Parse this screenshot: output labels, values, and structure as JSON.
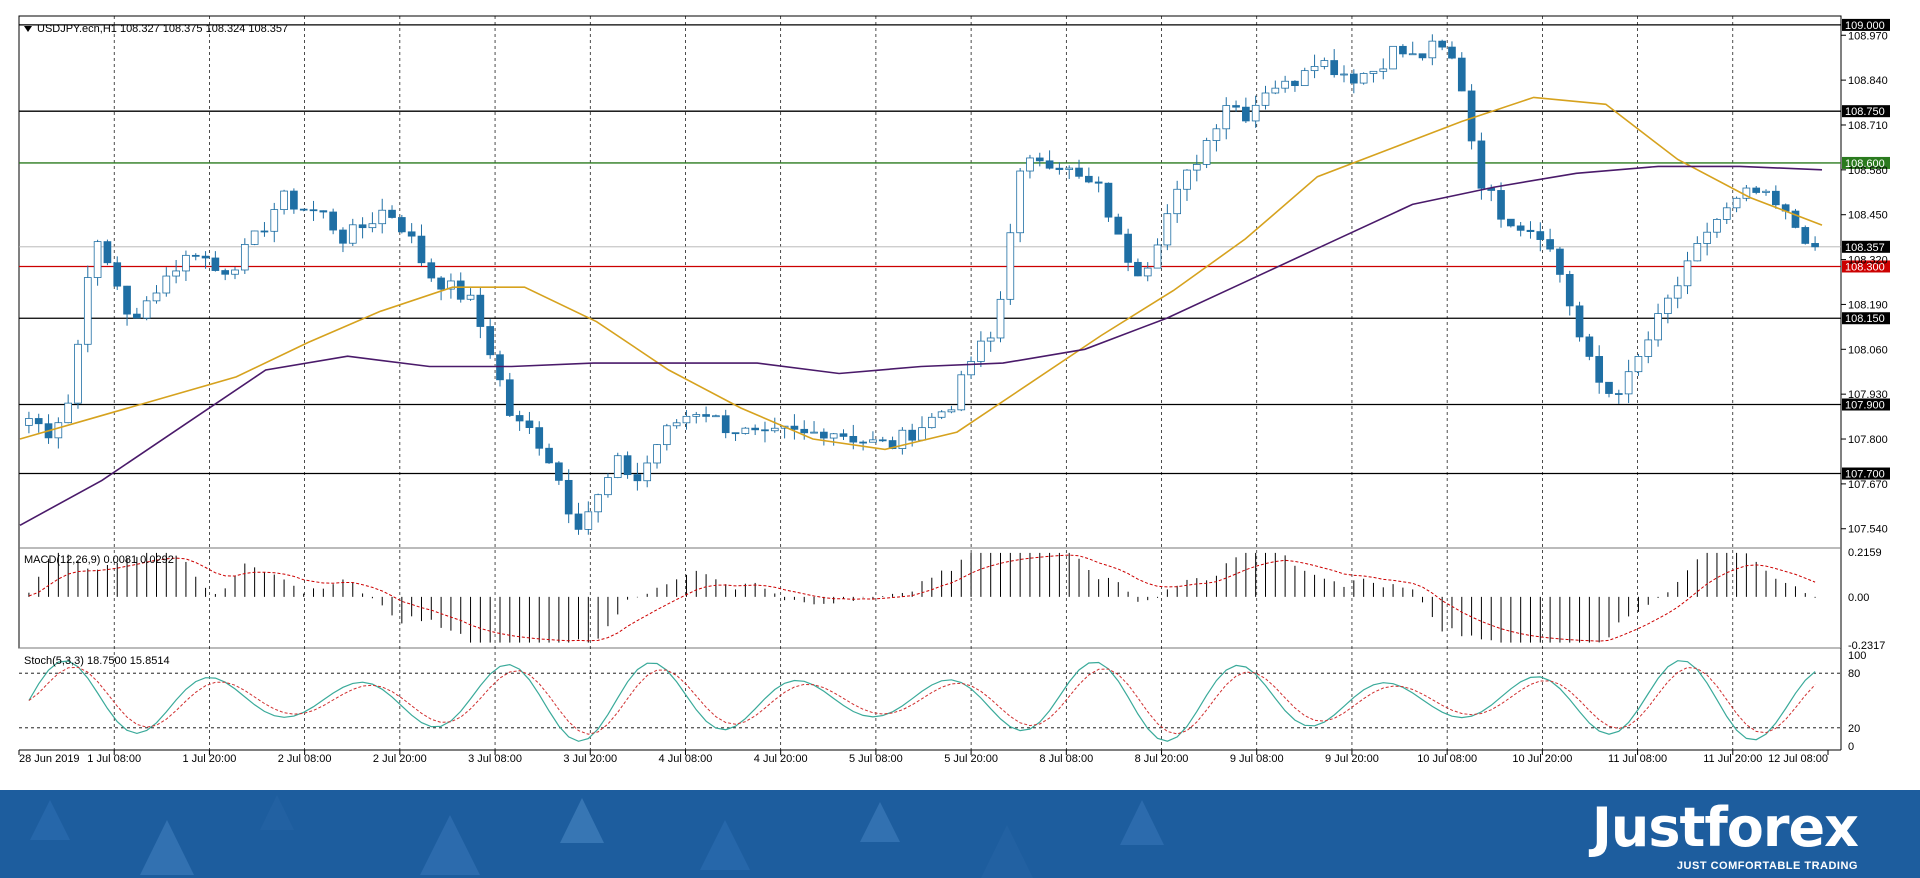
{
  "chart_header": {
    "symbol_info": "USDJPY.ecn,H1  108.327 108.375 108.324 108.357",
    "dropdown_icon": "triangle-down-icon"
  },
  "indicators": {
    "macd_label": "MACD(12,26,9) 0.0081 0.0292",
    "stoch_label": "Stoch(5,3,3) 18.7500 15.8514"
  },
  "brand": {
    "name": "Justforex",
    "tagline": "JUST COMFORTABLE TRADING"
  },
  "colors": {
    "candle_body": "#1f6fa4",
    "ma_fast": "#d6a21e",
    "ma_slow": "#4a1a6a",
    "support_line": "#cc0000",
    "resistance_line": "#2a7a1e",
    "level_line": "#000000",
    "stoch_main": "#3aaa9a",
    "stoch_signal": "#d03030",
    "footer_bg": "#1d5d9e"
  },
  "chart_data": [
    {
      "type": "candlestick",
      "title": "USDJPY.ecn,H1",
      "price_axis_ticks": [
        "108.970",
        "108.840",
        "108.710",
        "108.580",
        "108.450",
        "108.320",
        "108.190",
        "108.060",
        "107.930",
        "107.800",
        "107.670",
        "107.540"
      ],
      "ylim": [
        107.49,
        109.02
      ],
      "x_axis_ticks": [
        "28 Jun 2019",
        "1 Jul 08:00",
        "1 Jul 20:00",
        "2 Jul 08:00",
        "2 Jul 20:00",
        "3 Jul 08:00",
        "3 Jul 20:00",
        "4 Jul 08:00",
        "4 Jul 20:00",
        "5 Jul 08:00",
        "5 Jul 20:00",
        "8 Jul 08:00",
        "8 Jul 20:00",
        "9 Jul 08:00",
        "9 Jul 20:00",
        "10 Jul 08:00",
        "10 Jul 20:00",
        "11 Jul 08:00",
        "11 Jul 20:00",
        "12 Jul 08:00"
      ],
      "horizontal_levels": [
        {
          "value": 109.0,
          "label": "109.000",
          "color": "black"
        },
        {
          "value": 108.75,
          "label": "108.750",
          "color": "black"
        },
        {
          "value": 108.6,
          "label": "108.600",
          "color": "green"
        },
        {
          "value": 108.3,
          "label": "108.300",
          "color": "red"
        },
        {
          "value": 108.15,
          "label": "108.150",
          "color": "black"
        },
        {
          "value": 107.9,
          "label": "107.900",
          "color": "black"
        },
        {
          "value": 107.7,
          "label": "107.700",
          "color": "black"
        }
      ],
      "current_price": {
        "value": 108.357,
        "label": "108.357"
      },
      "ohlc": {
        "open": 108.327,
        "high": 108.375,
        "low": 108.324,
        "close": 108.357
      },
      "close_path": [
        107.86,
        107.82,
        107.92,
        108.38,
        108.28,
        108.12,
        108.24,
        108.3,
        108.35,
        108.28,
        108.32,
        108.4,
        108.5,
        108.47,
        108.45,
        108.38,
        108.42,
        108.47,
        108.4,
        108.28,
        108.24,
        108.2,
        108.05,
        107.85,
        107.82,
        107.72,
        107.55,
        107.62,
        107.73,
        107.68,
        107.8,
        107.86,
        107.89,
        107.84,
        107.82,
        107.8,
        107.82,
        107.81,
        107.83,
        107.81,
        107.79,
        107.78,
        107.82,
        107.86,
        107.91,
        108.05,
        108.1,
        108.55,
        108.62,
        108.6,
        108.55,
        108.52,
        108.35,
        108.28,
        108.43,
        108.55,
        108.66,
        108.78,
        108.74,
        108.83,
        108.82,
        108.91,
        108.88,
        108.85,
        108.87,
        108.93,
        108.9,
        108.94,
        108.88,
        108.56,
        108.46,
        108.42,
        108.4,
        108.26,
        108.05,
        107.93,
        107.96,
        108.08,
        108.2,
        108.3,
        108.42,
        108.47,
        108.52,
        108.48,
        108.42,
        108.36
      ],
      "ma_fast_path": [
        107.8,
        107.86,
        107.92,
        107.98,
        108.08,
        108.17,
        108.24,
        108.24,
        108.14,
        108.0,
        107.89,
        107.8,
        107.77,
        107.82,
        107.96,
        108.1,
        108.23,
        108.38,
        108.56,
        108.64,
        108.72,
        108.79,
        108.77,
        108.61,
        108.5,
        108.42
      ],
      "ma_slow_path": [
        107.55,
        107.68,
        107.84,
        108.0,
        108.04,
        108.01,
        108.01,
        108.02,
        108.02,
        108.02,
        107.99,
        108.01,
        108.02,
        108.06,
        108.15,
        108.26,
        108.37,
        108.48,
        108.53,
        108.57,
        108.59,
        108.59,
        108.58
      ],
      "macd_axis_ticks": [
        "0.2159",
        "0.00",
        "-0.2317"
      ],
      "stoch_axis_ticks": [
        "100",
        "80",
        "20",
        "0"
      ]
    }
  ]
}
